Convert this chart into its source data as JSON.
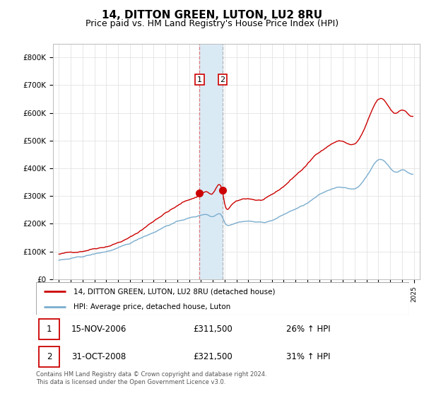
{
  "title": "14, DITTON GREEN, LUTON, LU2 8RU",
  "subtitle": "Price paid vs. HM Land Registry's House Price Index (HPI)",
  "title_fontsize": 11,
  "subtitle_fontsize": 9,
  "ylabel_ticks": [
    "£0",
    "£100K",
    "£200K",
    "£300K",
    "£400K",
    "£500K",
    "£600K",
    "£700K",
    "£800K"
  ],
  "ytick_values": [
    0,
    100000,
    200000,
    300000,
    400000,
    500000,
    600000,
    700000,
    800000
  ],
  "ylim": [
    0,
    850000
  ],
  "xlim_start": 1994.5,
  "xlim_end": 2025.5,
  "transaction1": {
    "label": "1",
    "date": "15-NOV-2006",
    "price": 311500,
    "pct": "26%",
    "year": 2006.88
  },
  "transaction2": {
    "label": "2",
    "date": "31-OCT-2008",
    "price": 321500,
    "pct": "31%",
    "year": 2008.83
  },
  "red_color": "#cc0000",
  "blue_color": "#7aadce",
  "shade_color": "#daeaf5",
  "vline1_color": "#dd6666",
  "vline2_color": "#aaaaaa",
  "legend_label_red": "14, DITTON GREEN, LUTON, LU2 8RU (detached house)",
  "legend_label_blue": "HPI: Average price, detached house, Luton",
  "table_row1": [
    "1",
    "15-NOV-2006",
    "£311,500",
    "26% ↑ HPI"
  ],
  "table_row2": [
    "2",
    "31-OCT-2008",
    "£321,500",
    "31% ↑ HPI"
  ],
  "footer": "Contains HM Land Registry data © Crown copyright and database right 2024.\nThis data is licensed under the Open Government Licence v3.0."
}
